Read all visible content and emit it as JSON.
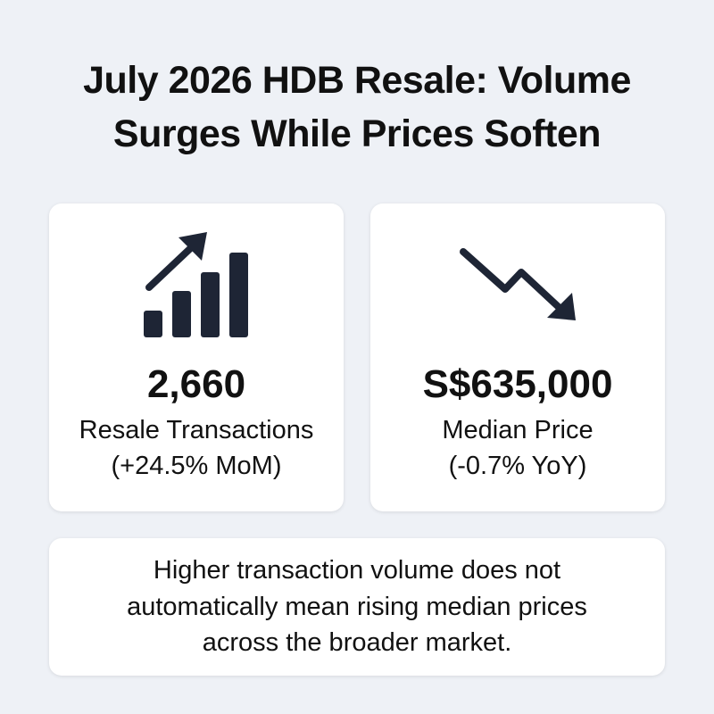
{
  "header": {
    "title_lines": [
      "July 2026 HDB Resale: Volume",
      "Surges While Prices Soften"
    ]
  },
  "cards": [
    {
      "value": "2,660",
      "label": "Resale Transactions",
      "change": "(+24.5% MoM)"
    },
    {
      "value": "S$635,000",
      "label": "Median Price",
      "change": "(-0.7% YoY)"
    }
  ],
  "note": {
    "lines": [
      "Higher transaction volume does not",
      "automatically mean rising median prices",
      "across the broader market."
    ]
  }
}
